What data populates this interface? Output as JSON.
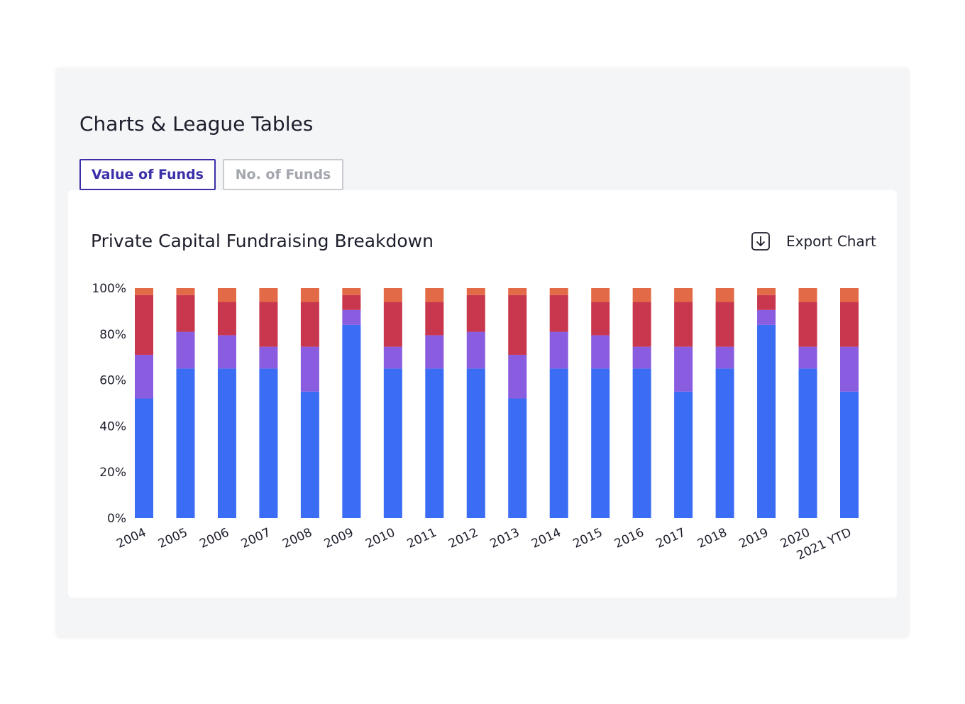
{
  "header": {
    "title": "Charts & League Tables"
  },
  "tabs": [
    {
      "label": "Value of Funds",
      "active": true
    },
    {
      "label": "No. of Funds",
      "active": false
    }
  ],
  "panel": {
    "title": "Private Capital Fundraising Breakdown",
    "export_label": "Export Chart",
    "export_icon": "download-icon"
  },
  "chart_data": {
    "type": "bar",
    "stacked": true,
    "title": "Private Capital Fundraising Breakdown",
    "xlabel": "",
    "ylabel": "",
    "ylim": [
      0,
      100
    ],
    "y_ticks": [
      "0%",
      "20%",
      "40%",
      "60%",
      "80%",
      "100%"
    ],
    "y_tick_values": [
      0,
      20,
      40,
      60,
      80,
      100
    ],
    "grid": false,
    "legend": "none",
    "categories": [
      "2004",
      "2005",
      "2006",
      "2007",
      "2008",
      "2009",
      "2010",
      "2011",
      "2012",
      "2013",
      "2014",
      "2015",
      "2016",
      "2017",
      "2018",
      "2019",
      "2020",
      "2021 YTD"
    ],
    "series": [
      {
        "color": "#3a6cf4",
        "values": [
          52,
          65,
          65,
          65,
          55,
          84,
          65,
          65,
          65,
          52,
          65,
          65,
          65,
          55,
          65,
          84,
          65,
          55
        ]
      },
      {
        "color": "#8a5cdf",
        "values": [
          19,
          16,
          14.5,
          9.5,
          19.5,
          6.5,
          9.5,
          14.5,
          16,
          19,
          16,
          14.5,
          9.5,
          19.5,
          9.5,
          6.5,
          9.5,
          19.5
        ]
      },
      {
        "color": "#c8374d",
        "values": [
          26,
          16,
          14.5,
          19.5,
          19.5,
          6.5,
          19.5,
          14.5,
          16,
          26,
          16,
          14.5,
          19.5,
          19.5,
          19.5,
          6.5,
          19.5,
          19.5
        ]
      },
      {
        "color": "#e26a46",
        "values": [
          3,
          3,
          6,
          6,
          6,
          3,
          6,
          6,
          3,
          3,
          3,
          6,
          6,
          6,
          6,
          3,
          6,
          6
        ]
      }
    ]
  }
}
